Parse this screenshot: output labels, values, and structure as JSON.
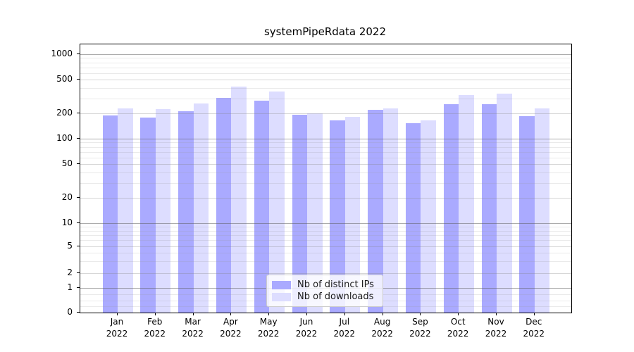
{
  "chart_data": {
    "type": "bar",
    "title": "systemPipeRdata 2022",
    "categories": [
      "Jan\n2022",
      "Feb\n2022",
      "Mar\n2022",
      "Apr\n2022",
      "May\n2022",
      "Jun\n2022",
      "Jul\n2022",
      "Aug\n2022",
      "Sep\n2022",
      "Oct\n2022",
      "Nov\n2022",
      "Dec\n2022"
    ],
    "series": [
      {
        "name": "Nb of distinct IPs",
        "color": "#aaaaff",
        "values": [
          190,
          178,
          212,
          305,
          282,
          192,
          165,
          218,
          152,
          255,
          255,
          185
        ]
      },
      {
        "name": "Nb of downloads",
        "color": "#ddddff",
        "values": [
          230,
          222,
          260,
          410,
          360,
          200,
          182,
          228,
          166,
          330,
          340,
          228
        ]
      }
    ],
    "yscale": "symlog",
    "ylim": [
      0,
      1300
    ],
    "yticks": [
      1000,
      500,
      200,
      100,
      50,
      20,
      10,
      5,
      2,
      1,
      0
    ],
    "xlabel": "",
    "ylabel": "",
    "grid": true,
    "legend_position": "lower-center-inside",
    "background_color": "#ffffff"
  }
}
